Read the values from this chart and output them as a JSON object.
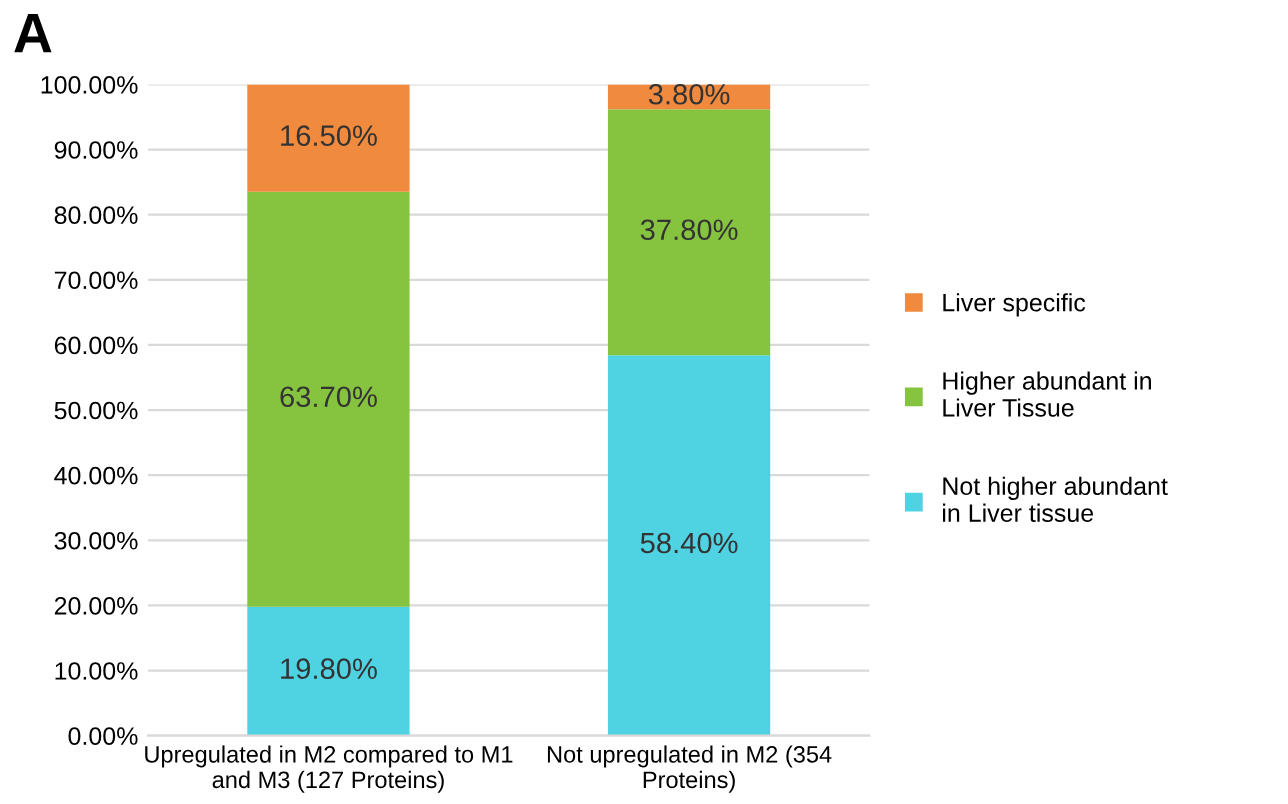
{
  "chart_data": {
    "type": "bar",
    "stacked": true,
    "categories": [
      "Upregulated in M2 compared to M1 and M3 (127 Proteins)",
      "Not upregulated in M2 (354 Proteins)"
    ],
    "series": [
      {
        "name": "Not higher abundant in Liver tissue",
        "color": "#4fd3e3",
        "values": [
          19.8,
          58.4
        ],
        "value_labels": [
          "19.80%",
          "58.40%"
        ]
      },
      {
        "name": "Higher abundant in Liver Tissue",
        "color": "#86c440",
        "values": [
          63.7,
          37.8
        ],
        "value_labels": [
          "63.70%",
          "37.80%"
        ]
      },
      {
        "name": "Liver specific",
        "color": "#f08a3e",
        "values": [
          16.5,
          3.8
        ],
        "value_labels": [
          "16.50%",
          "3.80%"
        ]
      }
    ],
    "ylim": [
      0,
      100
    ],
    "yticks": [
      {
        "value": 0,
        "label": "0.00%"
      },
      {
        "value": 10,
        "label": "10.00%"
      },
      {
        "value": 20,
        "label": "20.00%"
      },
      {
        "value": 30,
        "label": "30.00%"
      },
      {
        "value": 40,
        "label": "40.00%"
      },
      {
        "value": 50,
        "label": "50.00%"
      },
      {
        "value": 60,
        "label": "60.00%"
      },
      {
        "value": 70,
        "label": "70.00%"
      },
      {
        "value": 80,
        "label": "80.00%"
      },
      {
        "value": 90,
        "label": "90.00%"
      },
      {
        "value": 100,
        "label": "100.00%"
      }
    ],
    "grid": "y",
    "legend": "right",
    "annotations": [
      "A"
    ]
  }
}
